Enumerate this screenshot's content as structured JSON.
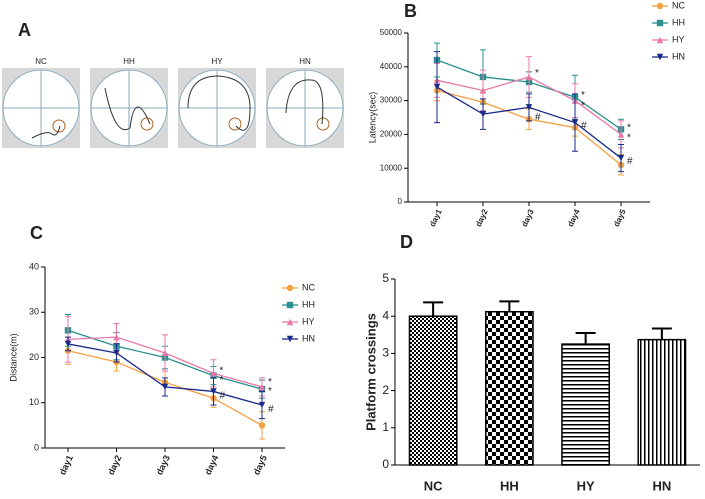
{
  "panel_a": {
    "label": "A",
    "titles": [
      "NC",
      "HH",
      "HY",
      "HN"
    ]
  },
  "chart_data": [
    {
      "type": "line",
      "label": "B",
      "ylabel": "Latency(sec)",
      "categories": [
        "day1",
        "day2",
        "day3",
        "day4",
        "day5"
      ],
      "ylim": [
        0,
        50000
      ],
      "yticks": [
        0,
        10000,
        20000,
        30000,
        40000,
        50000
      ],
      "legend": "outside-top-right",
      "series": [
        {
          "name": "NC",
          "color": "#f5a040",
          "marker": "circle",
          "values": [
            33000,
            29500,
            24500,
            22000,
            11000
          ],
          "errors": [
            3000,
            3000,
            3000,
            2500,
            3000
          ]
        },
        {
          "name": "HH",
          "color": "#2a9090",
          "marker": "square",
          "values": [
            42000,
            37000,
            35500,
            31000,
            21500
          ],
          "errors": [
            5000,
            8000,
            3000,
            6500,
            3000
          ]
        },
        {
          "name": "HY",
          "color": "#e878a8",
          "marker": "triangle",
          "values": [
            36000,
            33000,
            37000,
            30000,
            20000
          ],
          "errors": [
            5000,
            6000,
            6000,
            5000,
            4000
          ]
        },
        {
          "name": "HN",
          "color": "#1a2a8a",
          "marker": "down-triangle",
          "values": [
            34000,
            26000,
            28000,
            23500,
            13000
          ],
          "errors": [
            10500,
            4500,
            4000,
            8500,
            4000
          ]
        }
      ],
      "annotations": [
        {
          "text": "*",
          "x": "day3",
          "y": 38000
        },
        {
          "text": "#",
          "x": "day3",
          "y": 25000
        },
        {
          "text": "*",
          "x": "day4",
          "y": 31500
        },
        {
          "text": "*",
          "x": "day4",
          "y": 28500
        },
        {
          "text": "#",
          "x": "day4",
          "y": 22500
        },
        {
          "text": "*",
          "x": "day5",
          "y": 22000
        },
        {
          "text": "*",
          "x": "day5",
          "y": 19000
        },
        {
          "text": "#",
          "x": "day5",
          "y": 12000
        }
      ]
    },
    {
      "type": "line",
      "label": "C",
      "ylabel": "Distance(m)",
      "categories": [
        "day1",
        "day2",
        "day3",
        "day4",
        "day5"
      ],
      "ylim": [
        0,
        40
      ],
      "yticks": [
        0,
        10,
        20,
        30,
        40
      ],
      "legend": "right",
      "series": [
        {
          "name": "NC",
          "color": "#f5a040",
          "marker": "circle",
          "values": [
            21.5,
            19,
            14.5,
            11,
            5
          ],
          "errors": [
            3,
            2,
            3,
            2,
            3
          ]
        },
        {
          "name": "HH",
          "color": "#2a9090",
          "marker": "square",
          "values": [
            26,
            22.5,
            20,
            16,
            13
          ],
          "errors": [
            3.5,
            3,
            2.5,
            2,
            2
          ]
        },
        {
          "name": "HY",
          "color": "#e878a8",
          "marker": "triangle",
          "values": [
            24,
            24.5,
            21,
            16.5,
            13.5
          ],
          "errors": [
            5,
            3,
            4,
            3,
            2
          ]
        },
        {
          "name": "HN",
          "color": "#1a2a8a",
          "marker": "down-triangle",
          "values": [
            23,
            21,
            13.5,
            12.5,
            9.5
          ],
          "errors": [
            1.5,
            2,
            2,
            3,
            3
          ]
        }
      ],
      "annotations": [
        {
          "text": "*",
          "x": "day4",
          "y": 17
        },
        {
          "text": "*",
          "x": "day4",
          "y": 15
        },
        {
          "text": "#",
          "x": "day4",
          "y": 11.5
        },
        {
          "text": "*",
          "x": "day5",
          "y": 14.5
        },
        {
          "text": "*",
          "x": "day5",
          "y": 12.5
        },
        {
          "text": "#",
          "x": "day5",
          "y": 8.5
        }
      ]
    },
    {
      "type": "bar",
      "label": "D",
      "ylabel": "Platform crossings",
      "categories": [
        "NC",
        "HH",
        "HY",
        "HN"
      ],
      "values": [
        4.0,
        4.12,
        3.25,
        3.37
      ],
      "errors": [
        0.37,
        0.28,
        0.3,
        0.3
      ],
      "color": "#000000",
      "ylim": [
        0,
        5
      ],
      "yticks": [
        0,
        1,
        2,
        3,
        4,
        5
      ]
    }
  ]
}
